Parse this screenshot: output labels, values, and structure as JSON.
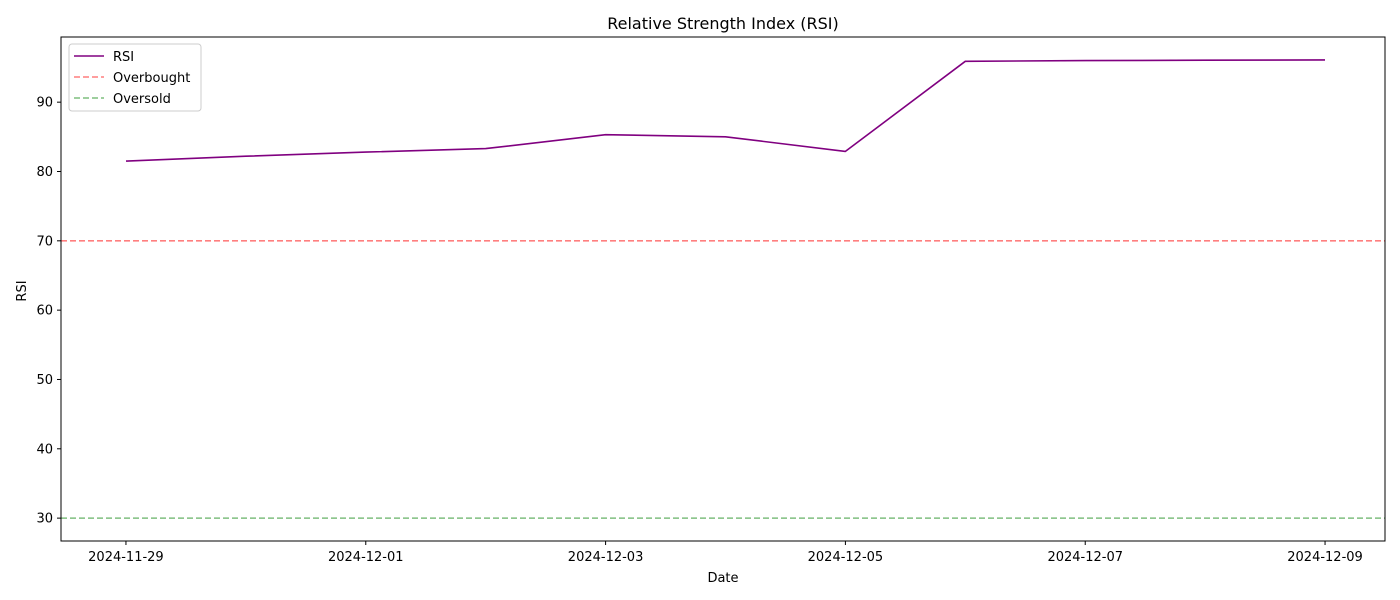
{
  "chart_data": {
    "type": "line",
    "title": "Relative Strength Index (RSI)",
    "xlabel": "Date",
    "ylabel": "RSI",
    "x": [
      "2024-11-29",
      "2024-11-30",
      "2024-12-01",
      "2024-12-02",
      "2024-12-03",
      "2024-12-04",
      "2024-12-05",
      "2024-12-06",
      "2024-12-07",
      "2024-12-08",
      "2024-12-09"
    ],
    "series": [
      {
        "name": "RSI",
        "color": "#800080",
        "style": "solid",
        "values": [
          81.5,
          82.2,
          82.8,
          83.3,
          85.3,
          85.0,
          82.9,
          95.9,
          96.0,
          96.05,
          96.1
        ]
      }
    ],
    "hlines": [
      {
        "name": "Overbought",
        "y": 70,
        "color": "#ff7f7f",
        "style": "dashed"
      },
      {
        "name": "Oversold",
        "y": 30,
        "color": "#7fbf7f",
        "style": "dashed"
      }
    ],
    "xticks": [
      "2024-11-29",
      "2024-12-01",
      "2024-12-03",
      "2024-12-05",
      "2024-12-07",
      "2024-12-09"
    ],
    "yticks": [
      30,
      40,
      50,
      60,
      70,
      80,
      90
    ],
    "xlim": [
      "2024-11-28T11:00",
      "2024-12-09T12:00"
    ],
    "ylim": [
      26.7,
      99.4
    ],
    "grid": false,
    "legend_position": "top-left",
    "legend": [
      "RSI",
      "Overbought",
      "Oversold"
    ]
  }
}
